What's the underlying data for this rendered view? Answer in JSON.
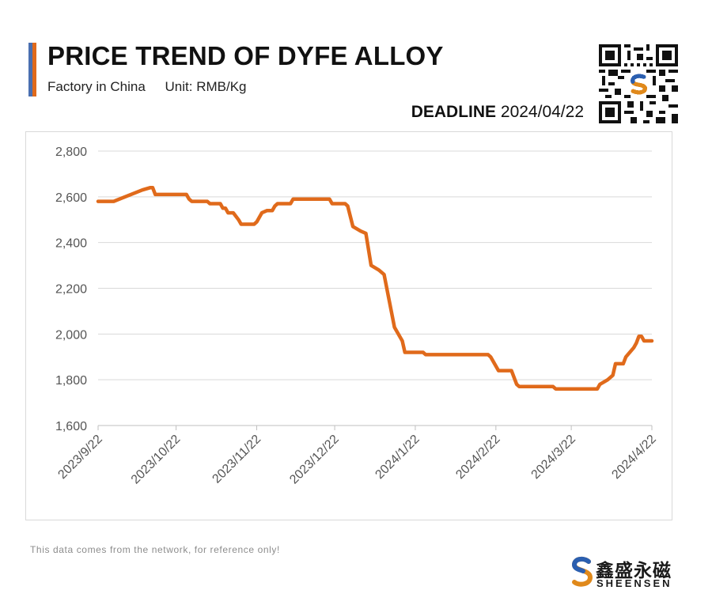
{
  "header": {
    "title": "PRICE TREND OF DYFE ALLOY",
    "source_label": "Factory in China",
    "unit_label": "Unit: RMB/Kg",
    "deadline_label": "DEADLINE",
    "deadline_date": "2024/04/22"
  },
  "footer": {
    "note": "This data comes from the network, for reference only!",
    "logo_cn": "鑫盛永磁",
    "logo_en": "SHEENSEN"
  },
  "colors": {
    "line": "#e06a1b",
    "grid": "#d9d9d9",
    "axis_text": "#555555",
    "accent_blue": "#4a6fb0",
    "accent_orange": "#e06a1b"
  },
  "icons": [
    "qr-code-icon",
    "sheensen-logo-icon"
  ],
  "chart_data": {
    "type": "line",
    "title": "PRICE TREND OF DYFE ALLOY",
    "xlabel": "",
    "ylabel": "",
    "ylim": [
      1600,
      2800
    ],
    "yticks": [
      1600,
      1800,
      2000,
      2200,
      2400,
      2600,
      2800
    ],
    "ytick_labels": [
      "1,600",
      "1,800",
      "2,000",
      "2,200",
      "2,400",
      "2,600",
      "2,800"
    ],
    "xlim": [
      "2023-09-22",
      "2024-04-22"
    ],
    "xticks": [
      "2023-09-22",
      "2023-10-22",
      "2023-11-22",
      "2023-12-22",
      "2024-01-22",
      "2024-02-22",
      "2024-03-22",
      "2024-04-22"
    ],
    "xtick_labels": [
      "2023/9/22",
      "2023/10/22",
      "2023/11/22",
      "2023/12/22",
      "2024/1/22",
      "2024/2/22",
      "2024/3/22",
      "2024/4/22"
    ],
    "grid": true,
    "legend": "none",
    "series": [
      {
        "points": [
          [
            "2023-09-22",
            2580
          ],
          [
            "2023-09-28",
            2580
          ],
          [
            "2023-10-09",
            2630
          ],
          [
            "2023-10-12",
            2640
          ],
          [
            "2023-10-13",
            2640
          ],
          [
            "2023-10-14",
            2610
          ],
          [
            "2023-10-25",
            2610
          ],
          [
            "2023-10-26",
            2610
          ],
          [
            "2023-10-27",
            2590
          ],
          [
            "2023-10-28",
            2580
          ],
          [
            "2023-11-03",
            2580
          ],
          [
            "2023-11-04",
            2570
          ],
          [
            "2023-11-08",
            2570
          ],
          [
            "2023-11-09",
            2550
          ],
          [
            "2023-11-10",
            2550
          ],
          [
            "2023-11-11",
            2530
          ],
          [
            "2023-11-13",
            2530
          ],
          [
            "2023-11-15",
            2500
          ],
          [
            "2023-11-16",
            2480
          ],
          [
            "2023-11-21",
            2480
          ],
          [
            "2023-11-22",
            2490
          ],
          [
            "2023-11-24",
            2530
          ],
          [
            "2023-11-26",
            2540
          ],
          [
            "2023-11-28",
            2540
          ],
          [
            "2023-11-29",
            2560
          ],
          [
            "2023-11-30",
            2570
          ],
          [
            "2023-12-05",
            2570
          ],
          [
            "2023-12-06",
            2590
          ],
          [
            "2023-12-20",
            2590
          ],
          [
            "2023-12-21",
            2570
          ],
          [
            "2023-12-26",
            2570
          ],
          [
            "2023-12-27",
            2560
          ],
          [
            "2023-12-29",
            2470
          ],
          [
            "2024-01-01",
            2450
          ],
          [
            "2024-01-03",
            2440
          ],
          [
            "2024-01-05",
            2300
          ],
          [
            "2024-01-08",
            2280
          ],
          [
            "2024-01-10",
            2260
          ],
          [
            "2024-01-14",
            2030
          ],
          [
            "2024-01-17",
            1970
          ],
          [
            "2024-01-18",
            1920
          ],
          [
            "2024-01-25",
            1920
          ],
          [
            "2024-01-26",
            1910
          ],
          [
            "2024-02-19",
            1910
          ],
          [
            "2024-02-20",
            1900
          ],
          [
            "2024-02-23",
            1840
          ],
          [
            "2024-02-28",
            1840
          ],
          [
            "2024-03-01",
            1780
          ],
          [
            "2024-03-02",
            1770
          ],
          [
            "2024-03-15",
            1770
          ],
          [
            "2024-03-16",
            1760
          ],
          [
            "2024-04-01",
            1760
          ],
          [
            "2024-04-02",
            1780
          ],
          [
            "2024-04-05",
            1800
          ],
          [
            "2024-04-07",
            1820
          ],
          [
            "2024-04-08",
            1870
          ],
          [
            "2024-04-11",
            1870
          ],
          [
            "2024-04-12",
            1900
          ],
          [
            "2024-04-15",
            1940
          ],
          [
            "2024-04-16",
            1960
          ],
          [
            "2024-04-17",
            1990
          ],
          [
            "2024-04-18",
            1990
          ],
          [
            "2024-04-19",
            1970
          ],
          [
            "2024-04-22",
            1970
          ]
        ]
      }
    ]
  }
}
